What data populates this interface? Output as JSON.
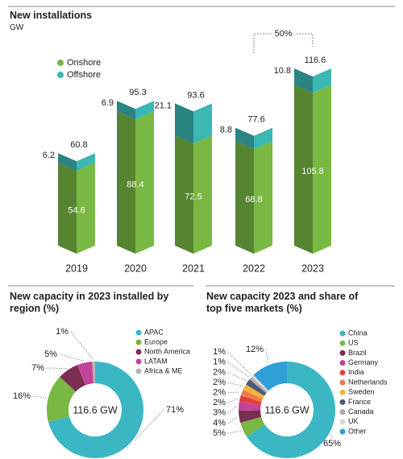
{
  "chart_data": [
    {
      "type": "bar",
      "stacked": true,
      "title": "New installations",
      "subtitle": "GW",
      "categories": [
        "2019",
        "2020",
        "2021",
        "2022",
        "2023"
      ],
      "series": [
        {
          "name": "Onshore",
          "color": "#78b843",
          "values": [
            54.6,
            88.4,
            72.5,
            68.8,
            105.8
          ]
        },
        {
          "name": "Offshore",
          "color": "#3bb7b4",
          "values": [
            6.2,
            6.9,
            21.1,
            8.8,
            10.8
          ]
        }
      ],
      "totals": [
        60.8,
        95.3,
        93.6,
        77.6,
        116.6
      ],
      "annotation": "50%",
      "legend": "top-left"
    },
    {
      "type": "pie",
      "donut": true,
      "title": "New capacity in 2023 installed by region (%)",
      "center_label": "116.6 GW",
      "categories": [
        "APAC",
        "Europe",
        "North America",
        "LATAM",
        "Africa & ME"
      ],
      "values": [
        71,
        16,
        7,
        5,
        1
      ],
      "value_labels": [
        "71%",
        "16%",
        "7%",
        "5%",
        "1%"
      ],
      "colors": [
        "#3bb7c4",
        "#78b843",
        "#7b2d52",
        "#c2449a",
        "#b5b5b5"
      ]
    },
    {
      "type": "pie",
      "donut": true,
      "title": "New capacity 2023 and share of top five markets (%)",
      "center_label": "116.6 GW",
      "categories": [
        "China",
        "US",
        "Brazil",
        "Germany",
        "India",
        "Netherlands",
        "Sweden",
        "France",
        "Canada",
        "UK",
        "Other"
      ],
      "values": [
        65,
        5,
        4,
        3,
        2,
        2,
        2,
        2,
        1,
        1,
        12
      ],
      "value_labels": [
        "65%",
        "5%",
        "4%",
        "3%",
        "2%",
        "2%",
        "2%",
        "2%",
        "1%",
        "1%",
        "12%"
      ],
      "colors": [
        "#3bb7c4",
        "#78b843",
        "#7b2d52",
        "#c2449a",
        "#e2403f",
        "#f07a4a",
        "#f2b43a",
        "#4a5a7a",
        "#b8a4ae",
        "#d8d8d8",
        "#2e9fd8"
      ]
    }
  ]
}
